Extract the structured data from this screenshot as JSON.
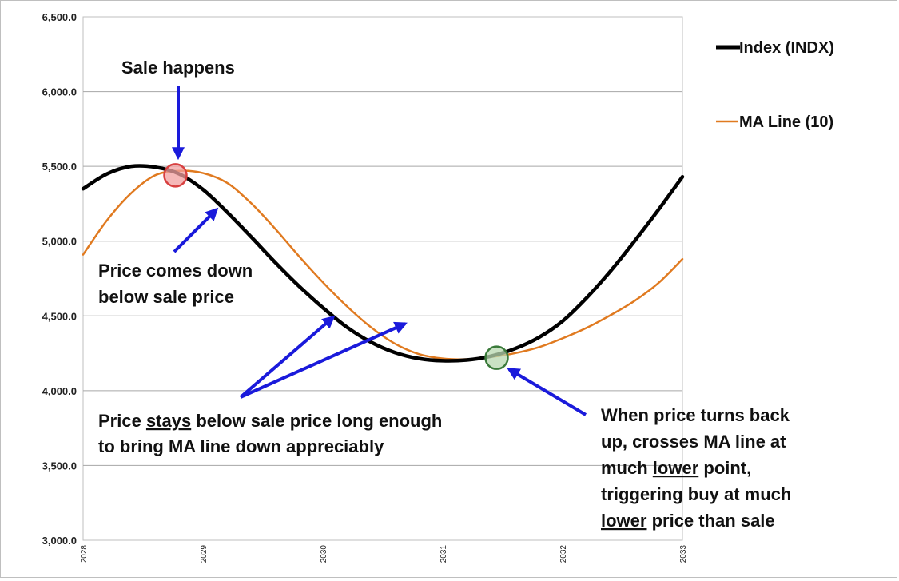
{
  "chart_data": {
    "type": "line",
    "title": "",
    "xlabel": "",
    "ylabel": "",
    "ylim": [
      3000,
      6500
    ],
    "xlim": [
      2028,
      2033
    ],
    "y_ticks": [
      3000,
      3500,
      4000,
      4500,
      5000,
      5500,
      6000,
      6500
    ],
    "y_tick_labels": [
      "3,000.0",
      "3,500.0",
      "4,000.0",
      "4,500.0",
      "5,000.0",
      "5,500.0",
      "6,000.0",
      "6,500.0"
    ],
    "x_ticks": [
      2028,
      2029,
      2030,
      2031,
      2032,
      2033
    ],
    "x_tick_labels": [
      "2028",
      "2029",
      "2030",
      "2031",
      "2032",
      "2033"
    ],
    "grid": true,
    "legend_position": "right",
    "colors": {
      "index": "#000000",
      "ma": "#e07a20",
      "arrow": "#1a1adb",
      "sell_marker": "#d84040",
      "buy_marker": "#3a7a3a"
    },
    "series": [
      {
        "name": "Index (INDX)",
        "x": [
          2028.0,
          2028.2,
          2028.4,
          2028.6,
          2028.8,
          2029.0,
          2029.2,
          2029.4,
          2029.6,
          2029.8,
          2030.0,
          2030.2,
          2030.4,
          2030.6,
          2030.8,
          2031.0,
          2031.2,
          2031.4,
          2031.6,
          2031.8,
          2032.0,
          2032.2,
          2032.4,
          2032.6,
          2032.8,
          2033.0
        ],
        "values": [
          5350,
          5450,
          5500,
          5495,
          5450,
          5345,
          5195,
          5030,
          4860,
          4700,
          4555,
          4425,
          4325,
          4255,
          4215,
          4200,
          4205,
          4230,
          4280,
          4355,
          4465,
          4620,
          4800,
          5000,
          5210,
          5430
        ]
      },
      {
        "name": "MA Line (10)",
        "x": [
          2028.0,
          2028.2,
          2028.4,
          2028.6,
          2028.8,
          2029.0,
          2029.2,
          2029.4,
          2029.6,
          2029.8,
          2030.0,
          2030.2,
          2030.4,
          2030.6,
          2030.8,
          2031.0,
          2031.2,
          2031.4,
          2031.6,
          2031.8,
          2032.0,
          2032.2,
          2032.4,
          2032.6,
          2032.8,
          2033.0
        ],
        "values": [
          4910,
          5140,
          5320,
          5440,
          5470,
          5455,
          5390,
          5255,
          5085,
          4900,
          4725,
          4565,
          4425,
          4315,
          4245,
          4215,
          4210,
          4225,
          4250,
          4290,
          4350,
          4420,
          4505,
          4600,
          4720,
          4880
        ]
      }
    ],
    "markers": [
      {
        "name": "sale-point",
        "x": 2028.77,
        "y": 5440
      },
      {
        "name": "buy-point",
        "x": 2031.45,
        "y": 4220
      }
    ],
    "annotations": {
      "sale": "Sale happens",
      "price_down": [
        "Price comes down",
        "below sale price"
      ],
      "stays": {
        "l1_pre": "Price ",
        "l1_ul": "stays",
        "l1_post": " below sale price long enough",
        "l2": "to bring MA line down appreciably"
      },
      "turn": {
        "l1": "When price turns back",
        "l2": "up, crosses MA line at",
        "l3_pre": "much ",
        "l3_ul": "lower",
        "l3_post": " point,",
        "l4": "triggering buy at much",
        "l5_ul": "lower",
        "l5_post": " price than sale"
      }
    }
  }
}
